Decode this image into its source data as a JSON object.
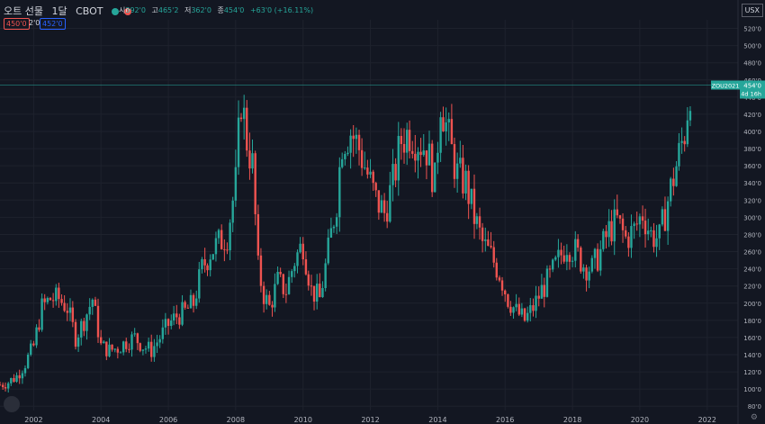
{
  "header": {
    "symbol": "오트 선물",
    "interval": "1달",
    "exchange": "CBOT",
    "open_label": "시",
    "open": "392'0",
    "high_label": "고",
    "high": "465'2",
    "low_label": "저",
    "low": "362'0",
    "close_label": "종",
    "close": "454'0",
    "change": "+63'0 (+16.11%)",
    "bid": "450'0",
    "spread": "2'0",
    "ask": "452'0",
    "currency": "USX",
    "status_badge": "D"
  },
  "price_label": {
    "ticker": "ZOU2021",
    "price": "454'0",
    "countdown": "4d 16h"
  },
  "colors": {
    "background": "#131722",
    "up": "#26a69a",
    "down": "#ef5350",
    "grid": "#1e222d",
    "last_price_line": "#26a69a"
  },
  "chart_data": {
    "type": "candlestick",
    "title": "",
    "xlabel": "",
    "ylabel": "",
    "x_ticks": [
      "2002",
      "2004",
      "2006",
      "2008",
      "2010",
      "2012",
      "2014",
      "2016",
      "2018",
      "2020",
      "2022"
    ],
    "y_ticks": [
      "80'0",
      "100'0",
      "120'0",
      "140'0",
      "160'0",
      "180'0",
      "200'0",
      "220'0",
      "240'0",
      "260'0",
      "280'0",
      "300'0",
      "320'0",
      "340'0",
      "360'0",
      "380'0",
      "400'0",
      "420'0",
      "440'0",
      "460'0",
      "480'0",
      "500'0",
      "520'0"
    ],
    "ylim": [
      75,
      530
    ],
    "x_range": [
      "2001-01",
      "2022-12"
    ],
    "last_price": 454,
    "grid": true,
    "close_series": [
      {
        "date": "2001-01",
        "close": 105
      },
      {
        "date": "2001-04",
        "close": 108
      },
      {
        "date": "2001-07",
        "close": 115
      },
      {
        "date": "2001-10",
        "close": 130
      },
      {
        "date": "2002-01",
        "close": 150
      },
      {
        "date": "2002-04",
        "close": 195
      },
      {
        "date": "2002-07",
        "close": 205
      },
      {
        "date": "2002-10",
        "close": 205
      },
      {
        "date": "2003-01",
        "close": 195
      },
      {
        "date": "2003-04",
        "close": 160
      },
      {
        "date": "2003-07",
        "close": 180
      },
      {
        "date": "2003-10",
        "close": 205
      },
      {
        "date": "2004-01",
        "close": 150
      },
      {
        "date": "2004-04",
        "close": 145
      },
      {
        "date": "2004-07",
        "close": 148
      },
      {
        "date": "2004-10",
        "close": 155
      },
      {
        "date": "2005-01",
        "close": 160
      },
      {
        "date": "2005-04",
        "close": 150
      },
      {
        "date": "2005-07",
        "close": 145
      },
      {
        "date": "2005-10",
        "close": 160
      },
      {
        "date": "2006-01",
        "close": 175
      },
      {
        "date": "2006-04",
        "close": 185
      },
      {
        "date": "2006-07",
        "close": 190
      },
      {
        "date": "2006-10",
        "close": 200
      },
      {
        "date": "2007-01",
        "close": 240
      },
      {
        "date": "2007-04",
        "close": 260
      },
      {
        "date": "2007-07",
        "close": 270
      },
      {
        "date": "2007-10",
        "close": 280
      },
      {
        "date": "2008-01",
        "close": 340
      },
      {
        "date": "2008-03",
        "close": 440
      },
      {
        "date": "2008-05",
        "close": 390
      },
      {
        "date": "2008-07",
        "close": 360
      },
      {
        "date": "2008-09",
        "close": 240
      },
      {
        "date": "2008-11",
        "close": 210
      },
      {
        "date": "2009-01",
        "close": 195
      },
      {
        "date": "2009-04",
        "close": 225
      },
      {
        "date": "2009-07",
        "close": 215
      },
      {
        "date": "2009-10",
        "close": 250
      },
      {
        "date": "2010-01",
        "close": 270
      },
      {
        "date": "2010-04",
        "close": 215
      },
      {
        "date": "2010-07",
        "close": 205
      },
      {
        "date": "2010-10",
        "close": 260
      },
      {
        "date": "2011-01",
        "close": 320
      },
      {
        "date": "2011-03",
        "close": 390
      },
      {
        "date": "2011-06",
        "close": 400
      },
      {
        "date": "2011-09",
        "close": 380
      },
      {
        "date": "2011-12",
        "close": 350
      },
      {
        "date": "2012-03",
        "close": 320
      },
      {
        "date": "2012-06",
        "close": 305
      },
      {
        "date": "2012-09",
        "close": 340
      },
      {
        "date": "2012-12",
        "close": 390
      },
      {
        "date": "2013-03",
        "close": 400
      },
      {
        "date": "2013-06",
        "close": 390
      },
      {
        "date": "2013-09",
        "close": 380
      },
      {
        "date": "2013-12",
        "close": 340
      },
      {
        "date": "2014-02",
        "close": 440
      },
      {
        "date": "2014-05",
        "close": 390
      },
      {
        "date": "2014-08",
        "close": 350
      },
      {
        "date": "2014-11",
        "close": 340
      },
      {
        "date": "2015-02",
        "close": 300
      },
      {
        "date": "2015-05",
        "close": 270
      },
      {
        "date": "2015-08",
        "close": 255
      },
      {
        "date": "2015-11",
        "close": 235
      },
      {
        "date": "2016-02",
        "close": 205
      },
      {
        "date": "2016-05",
        "close": 190
      },
      {
        "date": "2016-08",
        "close": 180
      },
      {
        "date": "2016-11",
        "close": 195
      },
      {
        "date": "2017-02",
        "close": 215
      },
      {
        "date": "2017-05",
        "close": 230
      },
      {
        "date": "2017-08",
        "close": 250
      },
      {
        "date": "2017-11",
        "close": 270
      },
      {
        "date": "2018-02",
        "close": 260
      },
      {
        "date": "2018-05",
        "close": 245
      },
      {
        "date": "2018-08",
        "close": 240
      },
      {
        "date": "2018-11",
        "close": 260
      },
      {
        "date": "2019-02",
        "close": 285
      },
      {
        "date": "2019-05",
        "close": 295
      },
      {
        "date": "2019-08",
        "close": 275
      },
      {
        "date": "2019-11",
        "close": 285
      },
      {
        "date": "2020-02",
        "close": 305
      },
      {
        "date": "2020-05",
        "close": 280
      },
      {
        "date": "2020-08",
        "close": 275
      },
      {
        "date": "2020-11",
        "close": 320
      },
      {
        "date": "2021-02",
        "close": 360
      },
      {
        "date": "2021-05",
        "close": 400
      },
      {
        "date": "2021-07",
        "close": 454
      }
    ]
  }
}
